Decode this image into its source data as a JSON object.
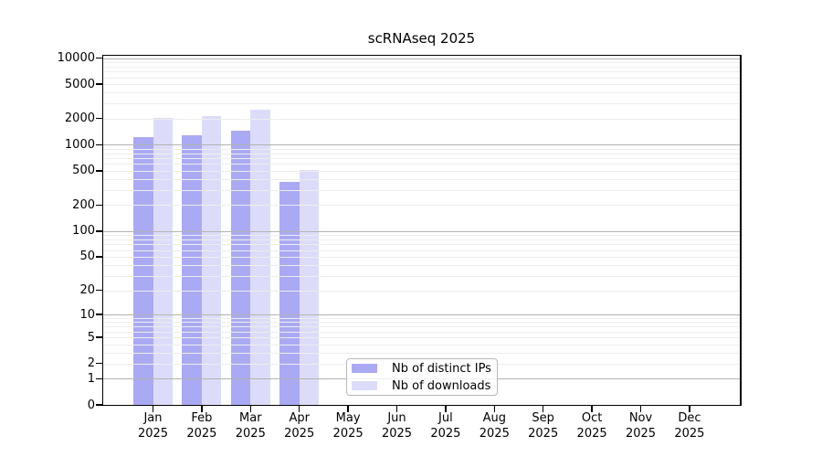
{
  "title": "scRNAseq 2025",
  "chart_data": {
    "type": "bar",
    "title": "scRNAseq 2025",
    "yscale": "log1p",
    "ylim": [
      0,
      10000
    ],
    "yticks": [
      0,
      1,
      2,
      5,
      10,
      20,
      50,
      100,
      200,
      500,
      1000,
      2000,
      5000,
      10000
    ],
    "grid": "horizontal, minor log gridlines, drawn over bars",
    "categories": [
      "Jan",
      "Feb",
      "Mar",
      "Apr",
      "May",
      "Jun",
      "Jul",
      "Aug",
      "Sep",
      "Oct",
      "Nov",
      "Dec"
    ],
    "category_year": "2025",
    "series": [
      {
        "name": "Nb of distinct IPs",
        "color": "#aaaaf4",
        "values": [
          1230,
          1270,
          1460,
          375,
          null,
          null,
          null,
          null,
          null,
          null,
          null,
          null
        ]
      },
      {
        "name": "Nb of downloads",
        "color": "#dcdcfa",
        "values": [
          2030,
          2160,
          2550,
          510,
          null,
          null,
          null,
          null,
          null,
          null,
          null,
          null
        ]
      }
    ],
    "legend_position": "lower center"
  },
  "colors": {
    "grid_major": "#b3b3b3",
    "grid_minor": "#ededed",
    "axis": "#000000",
    "background": "#ffffff"
  }
}
